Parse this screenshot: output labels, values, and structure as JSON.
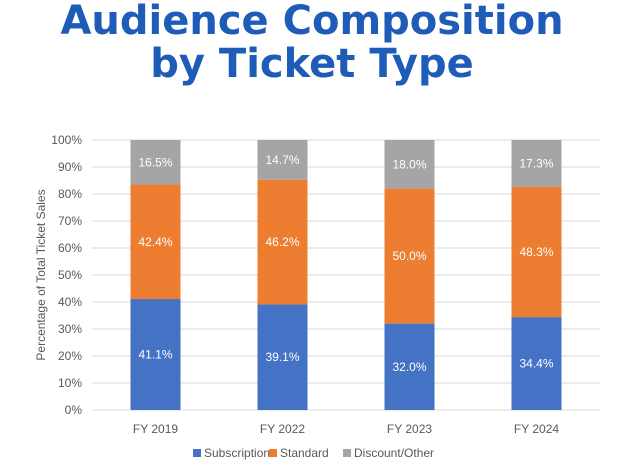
{
  "chart_data": {
    "type": "bar",
    "stacked": true,
    "title": [
      "Audience Composition",
      "by Ticket Type"
    ],
    "ylabel": "Percentage of Total Ticket Sales",
    "xlabel": "",
    "ylim": [
      0,
      100
    ],
    "yticks": [
      "0%",
      "10%",
      "20%",
      "30%",
      "40%",
      "50%",
      "60%",
      "70%",
      "80%",
      "90%",
      "100%"
    ],
    "grid": true,
    "legend_position": "bottom",
    "categories": [
      "FY 2019",
      "FY 2022",
      "FY 2023",
      "FY 2024"
    ],
    "series": [
      {
        "name": "Subscription",
        "color": "#4472C4",
        "values": [
          41.1,
          39.1,
          32.0,
          34.4
        ],
        "labels": [
          "41.1%",
          "39.1%",
          "32.0%",
          "34.4%"
        ]
      },
      {
        "name": "Standard",
        "color": "#ED7D31",
        "values": [
          42.4,
          46.2,
          50.0,
          48.3
        ],
        "labels": [
          "42.4%",
          "46.2%",
          "50.0%",
          "48.3%"
        ]
      },
      {
        "name": "Discount/Other",
        "color": "#A5A5A5",
        "values": [
          16.5,
          14.7,
          18.0,
          17.3
        ],
        "labels": [
          "16.5%",
          "14.7%",
          "18.0%",
          "17.3%"
        ]
      }
    ]
  }
}
